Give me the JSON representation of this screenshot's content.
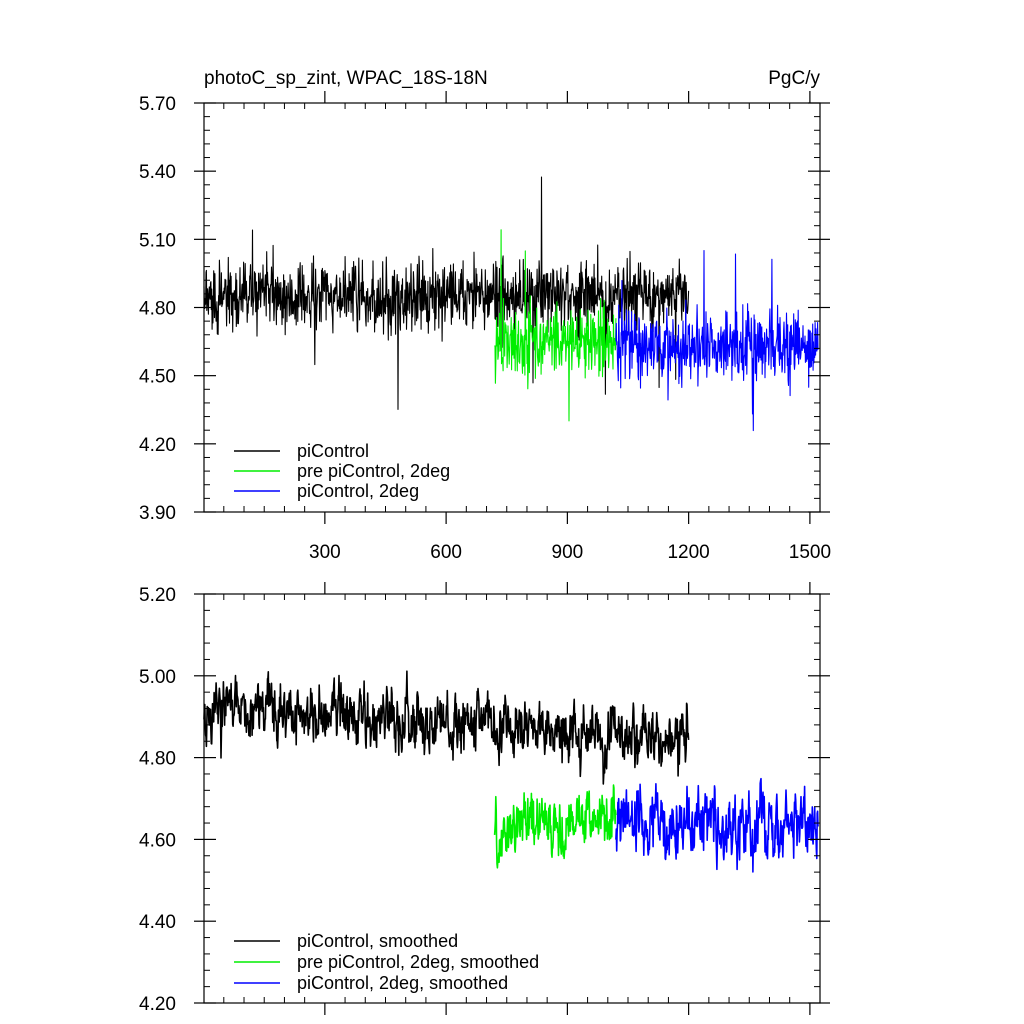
{
  "chart_data": [
    {
      "type": "line",
      "title_left": "photoC_sp_zint, WPAC_18S-18N",
      "title_right": "PgC/y",
      "xlim": [
        1,
        1525
      ],
      "ylim": [
        3.9,
        5.7
      ],
      "xticks": [
        300,
        600,
        900,
        1200,
        1500
      ],
      "xtick_labels": [
        "300",
        "600",
        "900",
        "1200",
        "1500"
      ],
      "yticks": [
        3.9,
        4.2,
        4.5,
        4.8,
        5.1,
        5.4,
        5.7
      ],
      "ytick_labels": [
        "3.90",
        "4.20",
        "4.50",
        "4.80",
        "5.10",
        "5.40",
        "5.70"
      ],
      "legend_position": "bottom-left",
      "series": [
        {
          "name": "piControl",
          "color": "#000000",
          "x_start": 1,
          "x_end": 1200,
          "mean": 4.85,
          "amplitude": 0.17,
          "noise": "annual"
        },
        {
          "name": "pre piControl, 2deg",
          "color": "#00ee00",
          "x_start": 720,
          "x_end": 1020,
          "mean": 4.65,
          "amplitude": 0.17,
          "noise": "annual"
        },
        {
          "name": "piControl, 2deg",
          "color": "#0000ff",
          "x_start": 1020,
          "x_end": 1520,
          "mean": 4.63,
          "amplitude": 0.17,
          "noise": "annual"
        }
      ]
    },
    {
      "type": "line",
      "xlim": [
        1,
        1525
      ],
      "ylim": [
        4.2,
        5.2
      ],
      "xticks": [
        300,
        600,
        900,
        1200,
        1500
      ],
      "xtick_labels": [],
      "yticks": [
        4.2,
        4.4,
        4.6,
        4.8,
        5.0,
        5.2
      ],
      "ytick_labels": [
        "4.20",
        "4.40",
        "4.60",
        "4.80",
        "5.00",
        "5.20"
      ],
      "legend_position": "bottom-left",
      "series": [
        {
          "name": "piControl, smoothed",
          "color": "#000000",
          "x_start": 1,
          "x_end": 1200,
          "mean_start": 4.92,
          "mean_end": 4.84,
          "amplitude": 0.07,
          "noise": "smoothed"
        },
        {
          "name": "pre piControl, 2deg, smoothed",
          "color": "#00ee00",
          "x_start": 720,
          "x_end": 1020,
          "mean_start": 4.62,
          "mean_end": 4.66,
          "amplitude": 0.07,
          "noise": "smoothed"
        },
        {
          "name": "piControl, 2deg, smoothed",
          "color": "#0000ff",
          "x_start": 1020,
          "x_end": 1520,
          "mean_start": 4.64,
          "mean_end": 4.63,
          "amplitude": 0.08,
          "noise": "smoothed"
        }
      ]
    }
  ]
}
